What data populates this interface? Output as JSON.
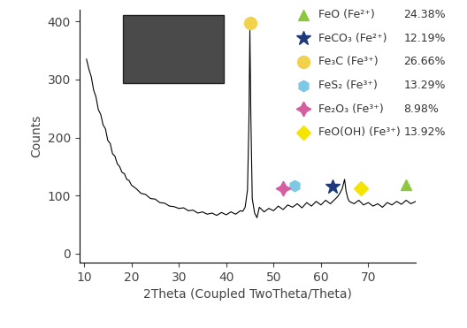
{
  "chart_data": {
    "type": "line",
    "x_label": "2Theta (Coupled TwoTheta/Theta)",
    "y_label": "Counts",
    "x": [
      10.5,
      11,
      11.5,
      12,
      12.5,
      13,
      13.5,
      14,
      14.5,
      15,
      15.5,
      16,
      16.5,
      17,
      17.5,
      18,
      18.5,
      19,
      19.5,
      20,
      21,
      22,
      23,
      24,
      25,
      26,
      27,
      28,
      29,
      30,
      31,
      32,
      33,
      34,
      35,
      36,
      37,
      38,
      39,
      40,
      41,
      42,
      43,
      43.5,
      44,
      44.5,
      44.8,
      45,
      45.2,
      45.5,
      46,
      46.5,
      47,
      48,
      49,
      50,
      51,
      52,
      53,
      54,
      55,
      56,
      57,
      58,
      59,
      60,
      61,
      62,
      63,
      63.5,
      64,
      64.5,
      65,
      65.3,
      65.7,
      66,
      67,
      68,
      69,
      70,
      71,
      72,
      73,
      74,
      75,
      76,
      77,
      78,
      79,
      80
    ],
    "values": [
      335,
      318,
      305,
      282,
      270,
      248,
      240,
      222,
      215,
      195,
      190,
      172,
      168,
      155,
      150,
      140,
      138,
      128,
      126,
      118,
      112,
      104,
      102,
      95,
      94,
      88,
      87,
      82,
      81,
      78,
      79,
      74,
      75,
      70,
      72,
      68,
      70,
      66,
      71,
      67,
      72,
      68,
      74,
      73,
      80,
      110,
      230,
      385,
      240,
      95,
      70,
      62,
      80,
      72,
      78,
      74,
      82,
      76,
      84,
      80,
      86,
      79,
      88,
      82,
      90,
      84,
      92,
      86,
      94,
      98,
      104,
      112,
      128,
      108,
      95,
      90,
      86,
      92,
      84,
      88,
      82,
      86,
      80,
      88,
      84,
      90,
      85,
      92,
      86,
      90
    ],
    "color": "#000000",
    "xlim": [
      9,
      80
    ],
    "ylim": [
      -15,
      420
    ],
    "xticks": [
      10,
      20,
      30,
      40,
      50,
      60,
      70
    ],
    "yticks": [
      0,
      100,
      200,
      300,
      400
    ],
    "legend": "upper right",
    "series": [
      {
        "name": "FeO (Fe²⁺)",
        "share_label": "24.38%",
        "type": "scatter",
        "marker": "triangle",
        "color": "#8dc63f",
        "x": [
          78
        ],
        "values": [
          118
        ]
      },
      {
        "name": "FeCO₃ (Fe²⁺)",
        "share_label": "12.19%",
        "type": "scatter",
        "marker": "star",
        "color": "#1f3a7a",
        "x": [
          62.5
        ],
        "values": [
          115
        ]
      },
      {
        "name": "Fe₃C (Fe³⁺)",
        "share_label": "26.66%",
        "type": "scatter",
        "marker": "circle",
        "color": "#f2d24b",
        "x": [
          45
        ],
        "values": [
          397
        ]
      },
      {
        "name": "FeS₂ (Fe³⁺)",
        "share_label": "13.29%",
        "type": "scatter",
        "marker": "hexagon",
        "color": "#7ec8e3",
        "x": [
          54.5
        ],
        "values": [
          117
        ]
      },
      {
        "name": "Fe₂O₃ (Fe³⁺)",
        "share_label": "8.98%",
        "type": "scatter",
        "marker": "star4",
        "color": "#d45fa0",
        "x": [
          52
        ],
        "values": [
          112
        ]
      },
      {
        "name": "FeO(OH) (Fe³⁺)",
        "share_label": "13.92%",
        "type": "scatter",
        "marker": "diamond",
        "color": "#f5e400",
        "x": [
          68.5
        ],
        "values": [
          113
        ]
      }
    ]
  }
}
